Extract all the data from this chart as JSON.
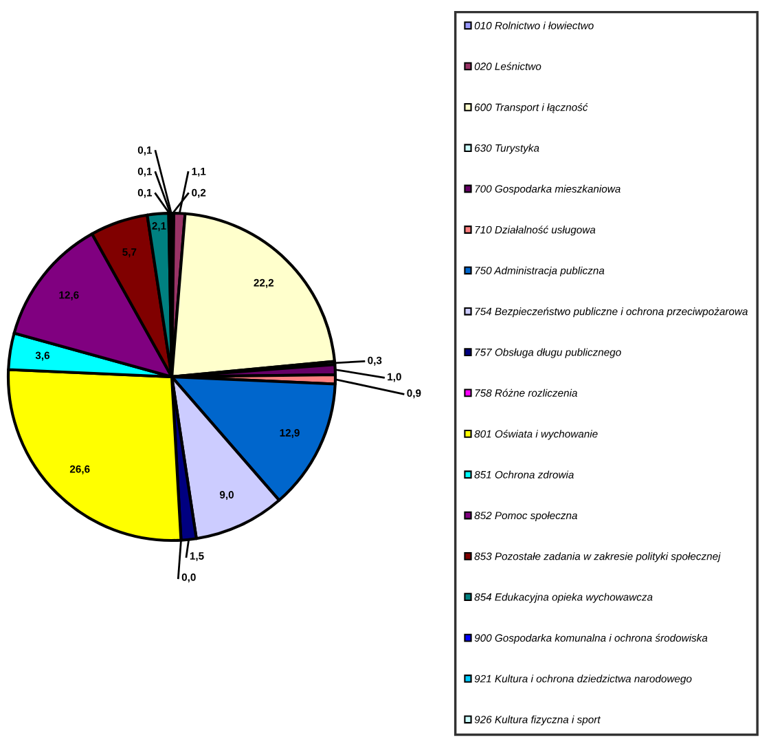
{
  "chart_data": {
    "type": "pie",
    "categories": [
      "010 Rolnictwo i łowiectwo",
      "020 Leśnictwo",
      "600 Transport i łączność",
      "630 Turystyka",
      "700 Gospodarka mieszkaniowa",
      "710 Działalność usługowa",
      "750 Administracja publiczna",
      "754 Bezpieczeństwo publiczne i ochrona przeciwpożarowa",
      "757 Obsługa długu publicznego",
      "758 Różne rozliczenia",
      "801 Oświata i wychowanie",
      "851 Ochrona zdrowia",
      "852 Pomoc społeczna",
      "853 Pozostałe zadania w zakresie polityki społecznej",
      "854 Edukacyjna opieka wychowawcza",
      "900 Gospodarka komunalna i ochrona środowiska",
      "921 Kultura i ochrona dziedzictwa narodowego",
      "926 Kultura fizyczna i sport"
    ],
    "values": [
      0.2,
      1.1,
      22.2,
      0.3,
      1.0,
      0.9,
      12.9,
      9.0,
      1.5,
      0.0,
      26.6,
      3.6,
      12.6,
      5.7,
      2.1,
      0.1,
      0.1,
      0.1
    ],
    "value_labels": [
      "0,2",
      "1,1",
      "22,2",
      "0,3",
      "1,0",
      "0,9",
      "12,9",
      "9,0",
      "1,5",
      "0,0",
      "26,6",
      "3,6",
      "12,6",
      "5,7",
      "2,1",
      "0,1",
      "0,1",
      "0,1"
    ],
    "colors": [
      "#9999ff",
      "#993366",
      "#ffffcc",
      "#ccffff",
      "#660066",
      "#ff8080",
      "#0066cc",
      "#ccccff",
      "#000080",
      "#ff00ff",
      "#ffff00",
      "#00ffff",
      "#800080",
      "#800000",
      "#008080",
      "#0000ff",
      "#00ccff",
      "#ccffff"
    ],
    "legend": "right"
  }
}
